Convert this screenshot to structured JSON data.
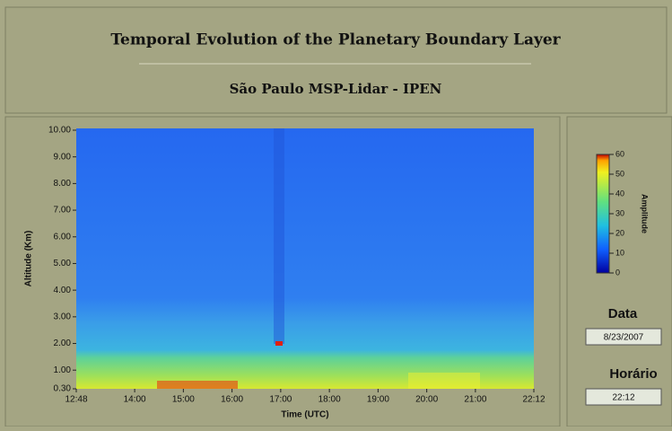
{
  "header": {
    "title": "Temporal Evolution of the Planetary Boundary Layer",
    "subtitle": "São Paulo MSP-Lidar - IPEN"
  },
  "chart_data": {
    "type": "heatmap",
    "xlabel": "Time (UTC)",
    "ylabel": "Altitude (Km)",
    "xlim": [
      768,
      1332
    ],
    "xticks": [
      {
        "value": 768,
        "label": "12:48"
      },
      {
        "value": 840,
        "label": "14:00"
      },
      {
        "value": 900,
        "label": "15:00"
      },
      {
        "value": 960,
        "label": "16:00"
      },
      {
        "value": 1020,
        "label": "17:00"
      },
      {
        "value": 1080,
        "label": "18:00"
      },
      {
        "value": 1140,
        "label": "19:00"
      },
      {
        "value": 1200,
        "label": "20:00"
      },
      {
        "value": 1260,
        "label": "21:00"
      },
      {
        "value": 1332,
        "label": "22:12"
      }
    ],
    "ylim": [
      0.3,
      10
    ],
    "yticks": [
      {
        "value": 10,
        "label": "10.00"
      },
      {
        "value": 9,
        "label": "9.00"
      },
      {
        "value": 8,
        "label": "8.00"
      },
      {
        "value": 7,
        "label": "7.00"
      },
      {
        "value": 6,
        "label": "6.00"
      },
      {
        "value": 5,
        "label": "5.00"
      },
      {
        "value": 4,
        "label": "4.00"
      },
      {
        "value": 3,
        "label": "3.00"
      },
      {
        "value": 2,
        "label": "2.00"
      },
      {
        "value": 1,
        "label": "1.00"
      },
      {
        "value": 0.3,
        "label": "0.30"
      }
    ],
    "colorbar": {
      "label": "Amplitude",
      "lim": [
        0,
        60
      ],
      "ticks": [
        0,
        10,
        20,
        30,
        40,
        50,
        60
      ]
    }
  },
  "side": {
    "date_label": "Data",
    "date": "8/23/2007",
    "time_label": "Horário",
    "time": "22:12"
  }
}
